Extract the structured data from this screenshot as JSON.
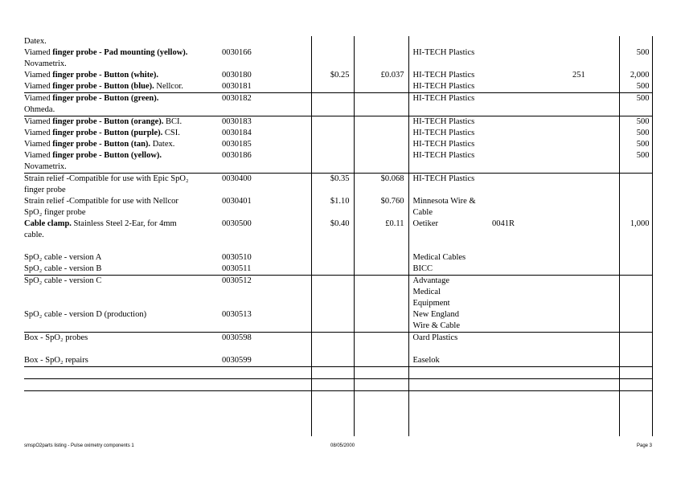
{
  "table": {
    "groups": [
      {
        "lines": [
          {
            "desc": [
              {
                "t": "Datex."
              }
            ]
          },
          {
            "desc": [
              {
                "t": "Viamed "
              },
              {
                "t": "finger probe - Pad mounting (yellow).",
                "b": true
              }
            ],
            "code": "0030166",
            "sup": "HI-TECH Plastics",
            "qty": "500"
          },
          {
            "desc": [
              {
                "t": "Novametrix."
              }
            ]
          },
          {
            "desc": [
              {
                "t": "Viamed "
              },
              {
                "t": "finger probe - Button (white).",
                "b": true
              }
            ],
            "code": "0030180",
            "usd": "$0.25",
            "gbp": "£0.037",
            "sup": "HI-TECH Plastics",
            "supcode": "251",
            "far": true,
            "qty": "2,000"
          },
          {
            "desc": [
              {
                "t": "Viamed "
              },
              {
                "t": "finger probe - Button (blue).",
                "b": true
              },
              {
                "t": " Nellcor."
              }
            ],
            "code": "0030181",
            "sup": "HI-TECH Plastics",
            "qty": "500"
          }
        ]
      },
      {
        "lines": [
          {
            "desc": [
              {
                "t": "Viamed "
              },
              {
                "t": "finger probe - Button (green).",
                "b": true
              }
            ],
            "code": "0030182",
            "sup": "HI-TECH Plastics",
            "qty": "500"
          },
          {
            "desc": [
              {
                "t": "Ohmeda."
              }
            ]
          }
        ]
      },
      {
        "lines": [
          {
            "desc": [
              {
                "t": "Viamed "
              },
              {
                "t": "finger probe - Button (orange).",
                "b": true
              },
              {
                "t": " BCI."
              }
            ],
            "code": "0030183",
            "sup": "HI-TECH Plastics",
            "qty": "500"
          },
          {
            "desc": [
              {
                "t": "Viamed "
              },
              {
                "t": "finger probe - Button (purple).",
                "b": true
              },
              {
                "t": " CSI."
              }
            ],
            "code": "0030184",
            "sup": "HI-TECH Plastics",
            "qty": "500"
          },
          {
            "desc": [
              {
                "t": "Viamed "
              },
              {
                "t": "finger probe - Button (tan).",
                "b": true
              },
              {
                "t": " Datex."
              }
            ],
            "code": "0030185",
            "sup": "HI-TECH Plastics",
            "qty": "500"
          },
          {
            "desc": [
              {
                "t": "Viamed "
              },
              {
                "t": "finger probe - Button (yellow).",
                "b": true
              }
            ],
            "code": "0030186",
            "sup": "HI-TECH Plastics",
            "qty": "500"
          },
          {
            "desc": [
              {
                "t": "Novametrix."
              }
            ]
          }
        ]
      },
      {
        "lines": [
          {
            "desc": [
              {
                "t": "Strain relief -Compatible for use with Epic SpO₂"
              }
            ],
            "code": "0030400",
            "usd": "$0.35",
            "gbp": "$0.068",
            "sup": "HI-TECH Plastics"
          },
          {
            "desc": [
              {
                "t": "finger probe"
              }
            ]
          },
          {
            "desc": [
              {
                "t": "Strain relief -Compatible for  use with Nellcor"
              }
            ],
            "code": "0030401",
            "usd": "$1.10",
            "gbp": "$0.760",
            "sup": "Minnesota Wire &"
          },
          {
            "desc": [
              {
                "t": "SpO₂ finger probe"
              }
            ],
            "sup": "Cable"
          },
          {
            "desc": [
              {
                "t": "Cable clamp.",
                "b": true
              },
              {
                "t": " Stainless Steel 2-Ear, for 4mm"
              }
            ],
            "code": "0030500",
            "usd": "$0.40",
            "gbp": "£0.11",
            "sup": "Oetiker",
            "supcode": "0041R",
            "qty": "1,000"
          },
          {
            "desc": [
              {
                "t": "cable."
              }
            ]
          },
          {
            "desc": []
          },
          {
            "desc": [
              {
                "t": "SpO₂ cable - version A"
              }
            ],
            "code": "0030510",
            "sup": "Medical Cables"
          },
          {
            "desc": [
              {
                "t": "SpO₂ cable - version B"
              }
            ],
            "code": "0030511",
            "sup": "BICC"
          }
        ]
      },
      {
        "lines": [
          {
            "desc": [
              {
                "t": "SpO₂ cable - version C"
              }
            ],
            "code": "0030512",
            "sup": "Advantage"
          },
          {
            "desc": [],
            "sup": "Medical"
          },
          {
            "desc": [],
            "sup": "Equipment"
          },
          {
            "desc": [
              {
                "t": "SpO₂ cable - version D (production)"
              }
            ],
            "code": "0030513",
            "sup": "New England"
          },
          {
            "desc": [],
            "sup": "Wire & Cable"
          }
        ]
      },
      {
        "lines": [
          {
            "desc": [
              {
                "t": "Box - SpO₂ probes"
              }
            ],
            "code": "0030598",
            "sup": "Oard Plastics"
          },
          {
            "desc": []
          },
          {
            "desc": [
              {
                "t": "Box - SpO₂ repairs"
              }
            ],
            "code": "0030599",
            "sup": "Easelok"
          }
        ]
      },
      {
        "lines": [
          {
            "desc": []
          }
        ]
      },
      {
        "lines": [
          {
            "desc": []
          }
        ]
      },
      {
        "lines": [
          {
            "desc": []
          },
          {
            "desc": []
          },
          {
            "desc": []
          },
          {
            "desc": []
          }
        ]
      }
    ]
  },
  "footer": {
    "left": "smspO2parts listing - Pulse oximetry components 1",
    "center": "08/05/2000",
    "right": "Page 3"
  }
}
